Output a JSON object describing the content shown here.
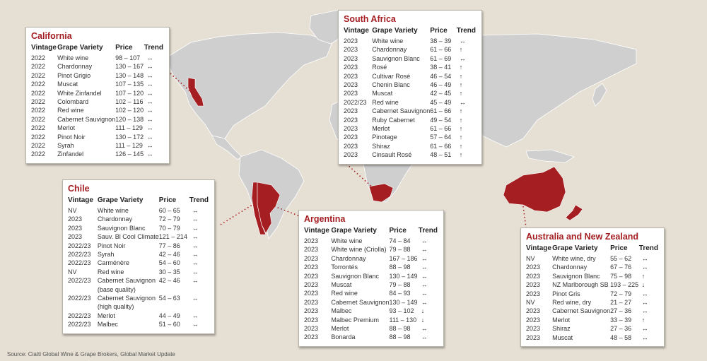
{
  "source_note": "Source: Ciatti Global Wine & Grape Brokers, Global Market Update",
  "headers": {
    "vintage": "Vintage",
    "grape": "Grape Variety",
    "price": "Price",
    "trend": "Trend"
  },
  "colors": {
    "highlight": "#a41e22",
    "land": "#cfcfcf",
    "background": "#e6e0d4"
  },
  "regions": [
    {
      "id": "california",
      "title": "California",
      "rows": [
        [
          "2022",
          "White wine",
          "98 – 107",
          "↔"
        ],
        [
          "2022",
          "Chardonnay",
          "130 – 167",
          "↔"
        ],
        [
          "2022",
          "Pinot Grigio",
          "130 – 148",
          "↔"
        ],
        [
          "2022",
          "Muscat",
          "107 – 135",
          "↔"
        ],
        [
          "2022",
          "White Zinfandel",
          "107 – 120",
          "↔"
        ],
        [
          "2022",
          "Colombard",
          "102 – 116",
          "↔"
        ],
        [
          "2022",
          "Red wine",
          "102 – 120",
          "↔"
        ],
        [
          "2022",
          "Cabernet Sauvignon",
          "120 – 138",
          "↔"
        ],
        [
          "2022",
          "Merlot",
          "111 – 129",
          "↔"
        ],
        [
          "2022",
          "Pinot Noir",
          "130 – 172",
          "↔"
        ],
        [
          "2022",
          "Syrah",
          "111 – 129",
          "↔"
        ],
        [
          "2022",
          "Zinfandel",
          "126 – 145",
          "↔"
        ]
      ]
    },
    {
      "id": "south-africa",
      "title": "South Africa",
      "rows": [
        [
          "2023",
          "White wine",
          "38 – 39",
          "↔"
        ],
        [
          "2023",
          "Chardonnay",
          "61 – 66",
          "↑"
        ],
        [
          "2023",
          "Sauvignon Blanc",
          "61 – 69",
          "↔"
        ],
        [
          "2023",
          "Rosé",
          "38 – 41",
          "↑"
        ],
        [
          "2023",
          "Cultivar Rosé",
          "46 – 54",
          "↑"
        ],
        [
          "2023",
          "Chenin Blanc",
          "46 – 49",
          "↑"
        ],
        [
          "2023",
          "Muscat",
          "42 – 45",
          "↑"
        ],
        [
          "2022/23",
          "Red wine",
          "45 – 49",
          "↔"
        ],
        [
          "2023",
          "Cabernet Sauvignon",
          "61 – 66",
          "↑"
        ],
        [
          "2023",
          "Ruby Cabernet",
          "49 – 54",
          "↑"
        ],
        [
          "2023",
          "Merlot",
          "61 – 66",
          "↑"
        ],
        [
          "2023",
          "Pinotage",
          "57 – 64",
          "↑"
        ],
        [
          "2023",
          "Shiraz",
          "61 – 66",
          "↑"
        ],
        [
          "2023",
          "Cinsault Rosé",
          "48 – 51",
          "↑"
        ]
      ]
    },
    {
      "id": "chile",
      "title": "Chile",
      "rows": [
        [
          "NV",
          "White wine",
          "60 – 65",
          "↔"
        ],
        [
          "2023",
          "Chardonnay",
          "72 – 79",
          "↔"
        ],
        [
          "2023",
          "Sauvignon Blanc",
          "70 – 79",
          "↔"
        ],
        [
          "2023",
          "Sauv. Bl Cool Climate",
          "121 – 214",
          "↔"
        ],
        [
          "2022/23",
          "Pinot Noir",
          "77 – 86",
          "↔"
        ],
        [
          "2022/23",
          "Syrah",
          "42 – 46",
          "↔"
        ],
        [
          "2022/23",
          "Carménère",
          "54 – 60",
          "↔"
        ],
        [
          "NV",
          "Red wine",
          "30 – 35",
          "↔"
        ],
        [
          "2022/23",
          "Cabernet Sauvignon\n(base quality)",
          "42 – 46",
          "↔"
        ],
        [
          "2022/23",
          "Cabernet Sauvignon\n(high quality)",
          "54 – 63",
          "↔"
        ],
        [
          "2022/23",
          "Merlot",
          "44 – 49",
          "↔"
        ],
        [
          "2022/23",
          "Malbec",
          "51 – 60",
          "↔"
        ]
      ]
    },
    {
      "id": "argentina",
      "title": "Argentina",
      "rows": [
        [
          "2023",
          "White wine",
          "74 – 84",
          "↔"
        ],
        [
          "2023",
          "White wine (Criolla)",
          "79 – 88",
          "↔"
        ],
        [
          "2023",
          "Chardonnay",
          "167 – 186",
          "↔"
        ],
        [
          "2023",
          "Torrontés",
          "88 – 98",
          "↔"
        ],
        [
          "2023",
          "Sauvignon Blanc",
          "130 – 149",
          "↔"
        ],
        [
          "2023",
          "Muscat",
          "79 – 88",
          "↔"
        ],
        [
          "2023",
          "Red wine",
          "84 – 93",
          "↔"
        ],
        [
          "2023",
          "Cabernet Sauvignon",
          "130 – 149",
          "↔"
        ],
        [
          "2023",
          "Malbec",
          "93 – 102",
          "↓"
        ],
        [
          "2023",
          "Malbec Premium",
          "111 – 130",
          "↓"
        ],
        [
          "2023",
          "Merlot",
          "88 – 98",
          "↔"
        ],
        [
          "2023",
          "Bonarda",
          "88 – 98",
          "↔"
        ]
      ]
    },
    {
      "id": "australia-nz",
      "title": "Australia and New Zealand",
      "rows": [
        [
          "NV",
          "White wine, dry",
          "55 – 62",
          "↔"
        ],
        [
          "2023",
          "Chardonnay",
          "67 – 76",
          "↔"
        ],
        [
          "2023",
          "Sauvignon Blanc",
          "75 – 98",
          "↑"
        ],
        [
          "2023",
          "NZ Marlborough SB",
          "193 – 225",
          "↓"
        ],
        [
          "2023",
          "Pinot Gris",
          "72 – 79",
          "↔"
        ],
        [
          "NV",
          "Red wine, dry",
          "21 – 27",
          "↔"
        ],
        [
          "2023",
          "Cabernet Sauvignon",
          "27 – 36",
          "↔"
        ],
        [
          "2023",
          "Merlot",
          "33 – 39",
          "↑"
        ],
        [
          "2023",
          "Shiraz",
          "27 – 36",
          "↔"
        ],
        [
          "2023",
          "Muscat",
          "48 – 58",
          "↔"
        ]
      ]
    }
  ]
}
